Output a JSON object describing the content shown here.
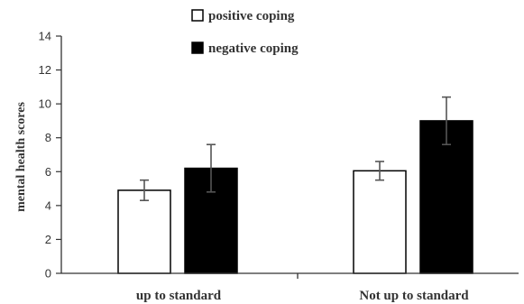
{
  "chart_data": {
    "type": "bar",
    "categories": [
      "up to standard",
      "Not up to standard"
    ],
    "series": [
      {
        "name": "positive coping",
        "values": [
          4.9,
          6.05
        ],
        "errors": [
          0.6,
          0.55
        ],
        "color": "#ffffff"
      },
      {
        "name": "negative coping",
        "values": [
          6.2,
          9.0
        ],
        "errors": [
          1.4,
          1.4
        ],
        "color": "#000000"
      }
    ],
    "xlabel": "",
    "ylabel": "mental health scores",
    "ylim": [
      0,
      14
    ],
    "yticks": [
      "0",
      "2",
      "4",
      "6",
      "8",
      "10",
      "12",
      "14"
    ],
    "grid": false,
    "legend_position": "top-center"
  }
}
